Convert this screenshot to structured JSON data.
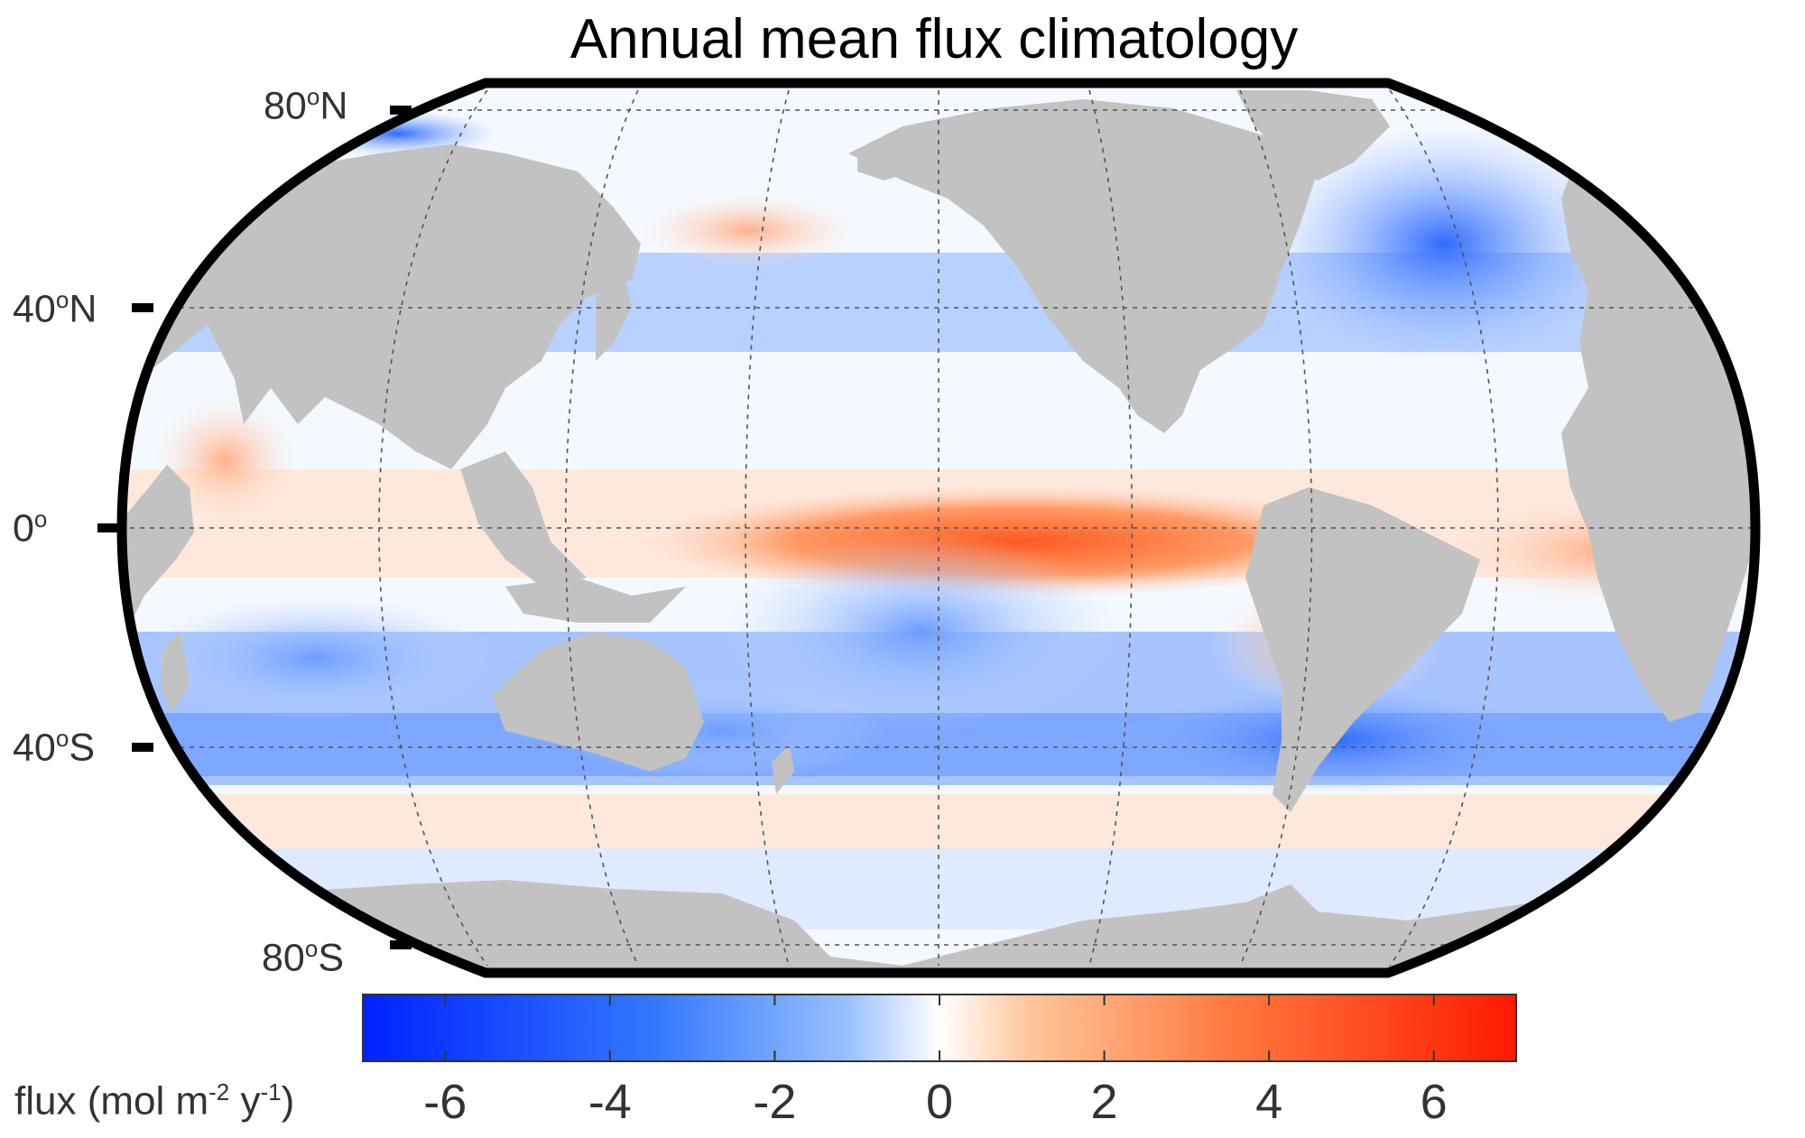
{
  "title": "Annual mean flux climatology",
  "latitude_labels": [
    {
      "value": "80",
      "deg": "o",
      "hemi": "N"
    },
    {
      "value": "40",
      "deg": "o",
      "hemi": "N"
    },
    {
      "value": "0",
      "deg": "o",
      "hemi": ""
    },
    {
      "value": "40",
      "deg": "o",
      "hemi": "S"
    },
    {
      "value": "80",
      "deg": "o",
      "hemi": "S"
    }
  ],
  "colorbar": {
    "label_prefix": "flux (mol m",
    "label_exp1": "-2",
    "label_mid": " y",
    "label_exp2": "-1",
    "label_suffix": ")",
    "min": -7,
    "max": 7,
    "ticks": [
      "-6",
      "-4",
      "-2",
      "0",
      "2",
      "4",
      "6"
    ],
    "colors": {
      "low": "#0022ff",
      "mid": "#ffffff",
      "high": "#ff1a00"
    }
  },
  "colors": {
    "land": "#c2c2c2",
    "frame": "#000000",
    "grid": "#555555"
  }
}
